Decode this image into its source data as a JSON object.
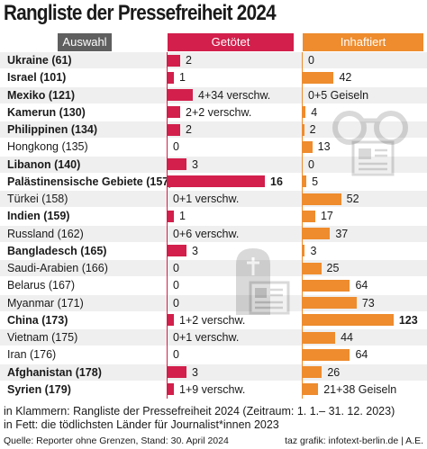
{
  "title": "Rangliste der Pressefreiheit 2024",
  "columns": {
    "auswahl": "Auswahl",
    "getoetet": "Getötet",
    "inhaftiert": "Inhaftiert"
  },
  "colors": {
    "killed": "#d21f4b",
    "imprisoned": "#ee8c2e",
    "header_gray": "#5f5f5f"
  },
  "icons": [
    "handcuffs-icon",
    "newspaper-icon",
    "gravestone-icon"
  ],
  "chart_data": {
    "type": "bar",
    "series": [
      {
        "name": "Getötet",
        "values": [
          2,
          1,
          4,
          2,
          2,
          0,
          3,
          16,
          0,
          1,
          0,
          3,
          0,
          0,
          0,
          1,
          0,
          0,
          3,
          1
        ],
        "labels": [
          "2",
          "1",
          "4+34 verschw.",
          "2+2 verschw.",
          "2",
          "0",
          "3",
          "16",
          "0+1 verschw.",
          "1",
          "0+6 verschw.",
          "3",
          "0",
          "0",
          "0",
          "1+2 verschw.",
          "0+1 verschw.",
          "0",
          "3",
          "1+9 verschw."
        ]
      },
      {
        "name": "Inhaftiert",
        "values": [
          0,
          42,
          0,
          4,
          2,
          13,
          0,
          5,
          52,
          17,
          37,
          3,
          25,
          64,
          73,
          123,
          44,
          64,
          26,
          21
        ],
        "labels": [
          "0",
          "42",
          "0+5 Geiseln",
          "4",
          "2",
          "13",
          "0",
          "5",
          "52",
          "17",
          "37",
          "3",
          "25",
          "64",
          "73",
          "123",
          "44",
          "64",
          "26",
          "21+38 Geiseln"
        ]
      }
    ],
    "categories": [
      "Ukraine (61)",
      "Israel (101)",
      "Mexiko (121)",
      "Kamerun (130)",
      "Philippinen (134)",
      "Hongkong (135)",
      "Libanon (140)",
      "Palästinensische Gebiete (157)",
      "Türkei (158)",
      "Indien (159)",
      "Russland (162)",
      "Bangladesch (165)",
      "Saudi-Arabien (166)",
      "Belarus (167)",
      "Myanmar (171)",
      "China (173)",
      "Vietnam (175)",
      "Iran (176)",
      "Afghanistan (178)",
      "Syrien (179)"
    ],
    "bold": [
      true,
      true,
      true,
      true,
      true,
      false,
      true,
      true,
      false,
      true,
      false,
      true,
      false,
      false,
      false,
      true,
      false,
      false,
      true,
      true
    ],
    "highlight_killed_index": 7,
    "highlight_imprisoned_index": 15
  },
  "footnotes": {
    "line1": "in Klammern: Rangliste der Pressefreiheit 2024 (Zeitraum: 1. 1.– 31. 12. 2023)",
    "line2": "in Fett: die tödlichsten Länder für Journalist*innen 2023"
  },
  "source": "Quelle: Reporter ohne Grenzen, Stand: 30. April 2024",
  "credit": "taz grafik: infotext-berlin.de | A.E."
}
